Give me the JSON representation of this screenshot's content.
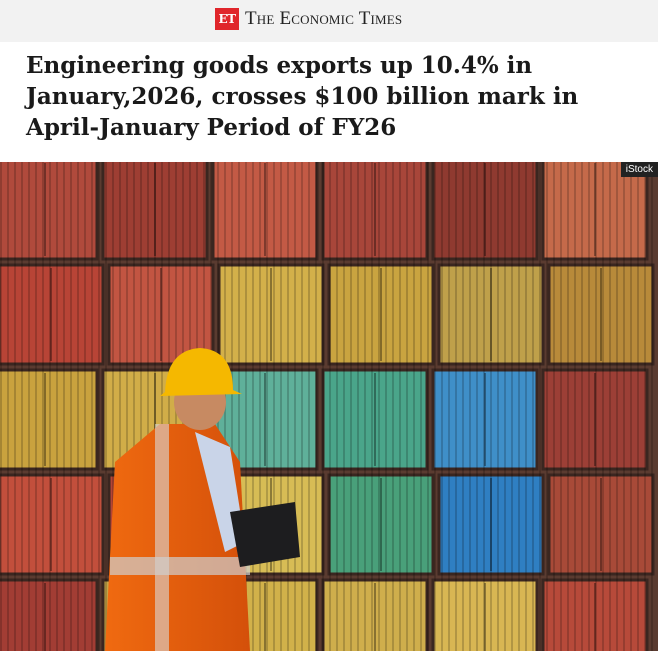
{
  "masthead": {
    "logo_mark": "ET",
    "publication": "The Economic Times",
    "brand_color": "#e0262b"
  },
  "article": {
    "headline": "Engineering goods exports up 10.4% in January,2026, crosses $100 billion mark in April-January Period of FY26"
  },
  "image": {
    "credit": "iStock"
  }
}
